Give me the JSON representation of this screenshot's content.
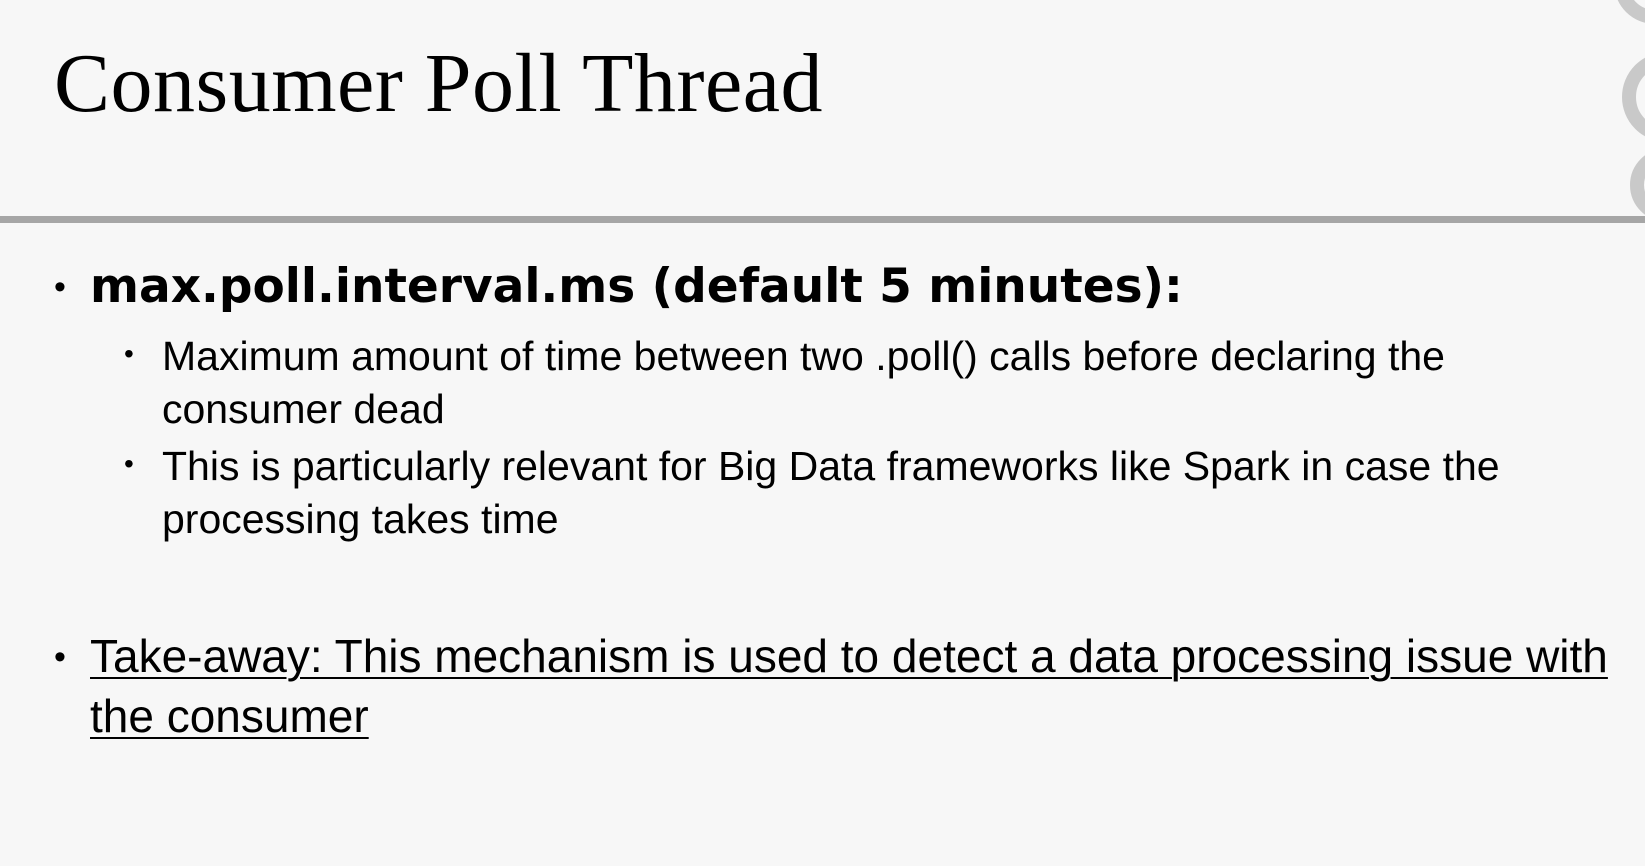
{
  "slide": {
    "title": "Consumer Poll Thread",
    "bullets": [
      {
        "text": "max.poll.interval.ms (default 5 minutes):",
        "sub_bullets": [
          "Maximum amount of time between two .poll() calls before declaring the consumer dead",
          "This is particularly relevant for Big Data frameworks like Spark in case the processing takes time"
        ]
      },
      {
        "text": "Take-away: This mechanism is used to detect a data processing issue with the consumer"
      }
    ]
  },
  "colors": {
    "background": "#f7f7f7",
    "divider": "#a6a6a6",
    "decoration": "#c9c9c9",
    "text": "#000000"
  }
}
